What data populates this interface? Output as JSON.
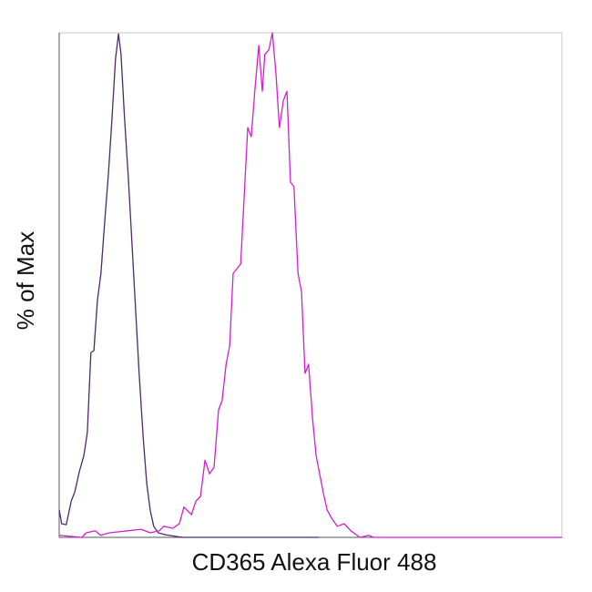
{
  "chart_data": {
    "type": "line",
    "x_label": "CD365 Alexa Fluor 488",
    "y_label": "% of Max",
    "xlim": [
      0,
      100
    ],
    "ylim": [
      0,
      100
    ],
    "series": [
      {
        "color": "#4b2a6e",
        "x": [
          0,
          0.5,
          1.4,
          2.4,
          3.1,
          4.0,
          4.9,
          5.6,
          6.3,
          6.9,
          7.6,
          8.3,
          9.1,
          9.8,
          10.5,
          11.2,
          11.8,
          12.3,
          13.0,
          13.8,
          14.5,
          15.2,
          15.9,
          16.7,
          17.4,
          18.1,
          18.8,
          19.7,
          21.2,
          24.5,
          37.1,
          51.6
        ],
        "values": [
          5.4,
          2.7,
          2.5,
          7.2,
          9.0,
          13.0,
          16.2,
          20.8,
          36.6,
          37.0,
          46.9,
          52.3,
          63.2,
          72.2,
          83.0,
          94.8,
          99.8,
          95.7,
          83.0,
          70.4,
          57.8,
          45.1,
          32.5,
          19.9,
          10.8,
          5.4,
          2.2,
          0.9,
          0.5,
          0,
          0,
          0
        ]
      },
      {
        "color": "#d21fd2",
        "x": [
          0,
          4.5,
          5.4,
          7.2,
          8.2,
          10.0,
          13.6,
          16.3,
          18.1,
          19.9,
          20.8,
          22.6,
          23.9,
          24.8,
          26.3,
          27.2,
          28.1,
          29.0,
          29.9,
          30.8,
          31.7,
          32.4,
          33.2,
          33.9,
          34.6,
          35.3,
          36.1,
          36.8,
          37.5,
          38.2,
          38.9,
          39.7,
          40.4,
          40.9,
          41.7,
          42.4,
          43.1,
          43.8,
          44.6,
          45.3,
          46.0,
          46.7,
          47.5,
          48.2,
          48.9,
          49.6,
          50.4,
          51.1,
          51.8,
          52.5,
          53.3,
          54.3,
          55.3,
          56.7,
          58.0,
          59.8,
          61.6,
          62.5,
          100
        ],
        "values": [
          0.4,
          0,
          0.9,
          1.3,
          0.4,
          0.9,
          1.3,
          1.6,
          0.9,
          1.3,
          2.2,
          1.8,
          2.7,
          6.0,
          4.5,
          7.2,
          8.1,
          15.3,
          12.6,
          13.9,
          25.3,
          27.1,
          34.3,
          37.9,
          52.3,
          53.2,
          54.2,
          67.7,
          81.2,
          79.4,
          88.4,
          97.5,
          88.4,
          95.7,
          96.6,
          100,
          92.1,
          81.2,
          86.6,
          88.4,
          70.4,
          69.5,
          52.3,
          48.7,
          32.5,
          34.3,
          23.5,
          16.2,
          12.6,
          9.0,
          5.4,
          3.6,
          2.2,
          2.7,
          1.3,
          0,
          0.4,
          0,
          0
        ]
      }
    ]
  }
}
